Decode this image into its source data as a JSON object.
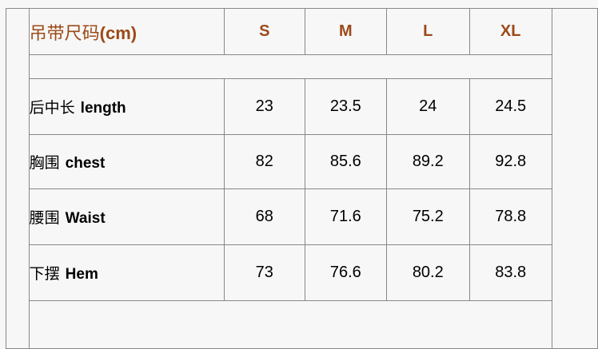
{
  "table": {
    "header": {
      "title_zh": "吊带尺码",
      "title_suffix": "(cm)",
      "sizes": [
        "S",
        "M",
        "L",
        "XL"
      ]
    },
    "rows": [
      {
        "label_zh": "后中长",
        "label_en": "length",
        "values": [
          "23",
          "23.5",
          "24",
          "24.5"
        ]
      },
      {
        "label_zh": "胸围",
        "label_en": "chest",
        "values": [
          "82",
          "85.6",
          "89.2",
          "92.8"
        ]
      },
      {
        "label_zh": "腰围",
        "label_en": "Waist",
        "values": [
          "68",
          "71.6",
          "75.2",
          "78.8"
        ]
      },
      {
        "label_zh": "下摆",
        "label_en": "Hem",
        "values": [
          "73",
          "76.6",
          "80.2",
          "83.8"
        ]
      }
    ],
    "colors": {
      "header_text": "#9b4a18",
      "body_text": "#000000",
      "border": "#878787",
      "background": "#f7f7f7"
    }
  }
}
